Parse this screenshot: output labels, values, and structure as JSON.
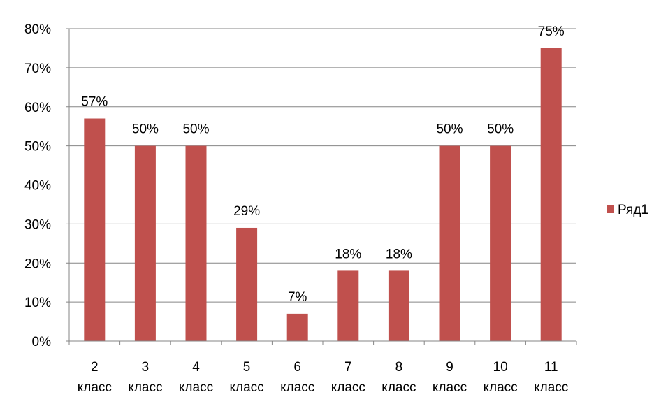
{
  "chart_data": {
    "type": "bar",
    "categories": [
      "2 класс",
      "3 класс",
      "4 класс",
      "5 класс",
      "6 класс",
      "7 класс",
      "8 класс",
      "9 класс",
      "10 класс",
      "11 класс"
    ],
    "category_lines": [
      [
        "2",
        "класс"
      ],
      [
        "3",
        "класс"
      ],
      [
        "4",
        "класс"
      ],
      [
        "5",
        "класс"
      ],
      [
        "6",
        "класс"
      ],
      [
        "7",
        "класс"
      ],
      [
        "8",
        "класс"
      ],
      [
        "9",
        "класс"
      ],
      [
        "10",
        "класс"
      ],
      [
        "11",
        "класс"
      ]
    ],
    "series": [
      {
        "name": "Ряд1",
        "values": [
          57,
          50,
          50,
          29,
          7,
          18,
          18,
          50,
          50,
          75
        ],
        "color": "#c0504d"
      }
    ],
    "data_labels": [
      "57%",
      "50%",
      "50%",
      "29%",
      "7%",
      "18%",
      "18%",
      "50%",
      "50%",
      "75%"
    ],
    "y_ticks": [
      0,
      10,
      20,
      30,
      40,
      50,
      60,
      70,
      80
    ],
    "y_tick_labels": [
      "0%",
      "10%",
      "20%",
      "30%",
      "40%",
      "50%",
      "60%",
      "70%",
      "80%"
    ],
    "ylim": [
      0,
      80
    ],
    "grid": true,
    "legend": "right",
    "gridline_color": "#868686"
  }
}
